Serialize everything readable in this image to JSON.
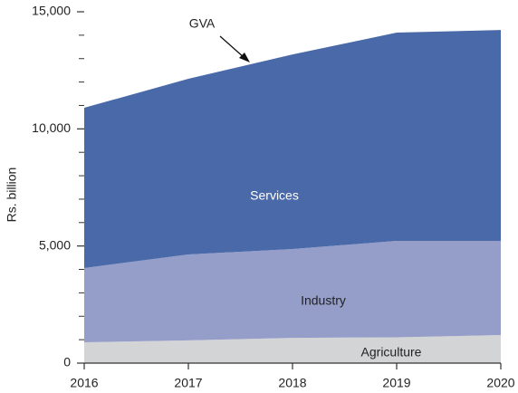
{
  "chart_data": {
    "type": "stacked_area",
    "y_label": "Rs. billion",
    "annotation": "GVA",
    "x": [
      2016,
      2017,
      2018,
      2019,
      2020
    ],
    "xlim": [
      2016,
      2020
    ],
    "xticks": [
      2016,
      2017,
      2018,
      2019,
      2020
    ],
    "ylim": [
      0,
      15000
    ],
    "yticks": [
      0,
      {
        "value": 5000,
        "label": "5,000"
      },
      {
        "value": 10000,
        "label": "10,000"
      },
      {
        "value": 15000,
        "label": "15,000"
      }
    ],
    "yminor_ticks": [
      1000,
      2000,
      3000,
      4000,
      6000,
      7000,
      8000,
      9000,
      11000,
      12000,
      13000,
      14000
    ],
    "series": [
      {
        "name": "Agriculture",
        "color": "#d3d4d6",
        "values": [
          890,
          970,
          1080,
          1100,
          1200
        ]
      },
      {
        "name": "Industry",
        "color": "#959dc9",
        "values": [
          3170,
          3670,
          3790,
          4120,
          4020
        ]
      },
      {
        "name": "Services",
        "color": "#4a69a8",
        "values": [
          6840,
          7500,
          8310,
          8890,
          9000
        ]
      }
    ]
  }
}
